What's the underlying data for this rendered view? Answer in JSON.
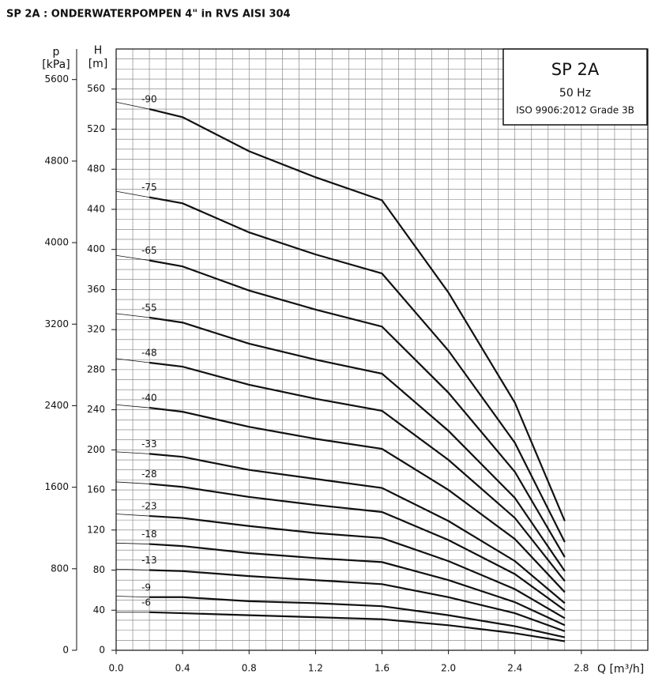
{
  "chart_data": {
    "type": "line",
    "title": "SP 2A : ONDERWATERPOMPEN 4\" in RVS AISI 304",
    "box": {
      "model": "SP 2A",
      "frequency": "50 Hz",
      "standard": "ISO 9906:2012 Grade 3B"
    },
    "x_label": "Q [m³/h]",
    "y_label_symbol": "H",
    "y_label_unit": "[m]",
    "y2_label_symbol": "p",
    "y2_label_unit": "[kPa]",
    "x": [
      0,
      0.2,
      0.4,
      0.8,
      1.2,
      1.6,
      2.0,
      2.4,
      2.7
    ],
    "xlim": [
      0,
      3.2
    ],
    "xticks": [
      {
        "value": 0,
        "label": "0.0"
      },
      0.4,
      0.8,
      1.2,
      1.6,
      {
        "value": 2,
        "label": "2.0"
      },
      2.4,
      2.8
    ],
    "ylim": [
      0,
      600
    ],
    "yticks": [
      0,
      40,
      80,
      120,
      160,
      200,
      240,
      280,
      320,
      360,
      400,
      440,
      480,
      520,
      560
    ],
    "y2lim": [
      0,
      5900
    ],
    "y2ticks": [
      0,
      800,
      1600,
      2400,
      3200,
      4000,
      4800,
      5600
    ],
    "grid": true,
    "color": "#111111",
    "series": [
      {
        "name": "-90",
        "values": [
          547,
          540,
          532,
          498,
          472,
          449,
          357,
          247,
          129
        ]
      },
      {
        "name": "-75",
        "values": [
          458,
          452,
          446,
          417,
          395,
          376,
          299,
          207,
          108
        ]
      },
      {
        "name": "-65",
        "values": [
          394,
          389,
          383,
          359,
          340,
          323,
          257,
          178,
          93
        ]
      },
      {
        "name": "-55",
        "values": [
          336,
          332,
          327,
          306,
          290,
          276,
          219,
          152,
          79
        ]
      },
      {
        "name": "-48",
        "values": [
          291,
          287,
          283,
          265,
          251,
          239,
          190,
          132,
          69
        ]
      },
      {
        "name": "-40",
        "values": [
          245,
          242,
          238,
          223,
          211,
          201,
          160,
          111,
          58
        ]
      },
      {
        "name": "-33",
        "values": [
          198,
          196,
          193,
          180,
          171,
          162,
          129,
          89,
          47
        ]
      },
      {
        "name": "-28",
        "values": [
          168,
          166,
          163,
          153,
          145,
          138,
          110,
          76,
          40
        ]
      },
      {
        "name": "-23",
        "values": [
          136,
          134,
          132,
          124,
          117,
          112,
          89,
          61,
          32
        ]
      },
      {
        "name": "-18",
        "values": [
          107,
          106,
          104,
          97,
          92,
          88,
          70,
          48,
          25
        ]
      },
      {
        "name": "-13",
        "values": [
          81,
          80,
          79,
          74,
          70,
          66,
          53,
          37,
          19
        ]
      },
      {
        "name": "-9",
        "values": [
          54,
          53,
          53,
          49,
          47,
          44,
          35,
          24,
          13
        ]
      },
      {
        "name": "-6",
        "values": [
          38,
          38,
          37,
          35,
          33,
          31,
          25,
          17,
          9
        ]
      }
    ]
  }
}
